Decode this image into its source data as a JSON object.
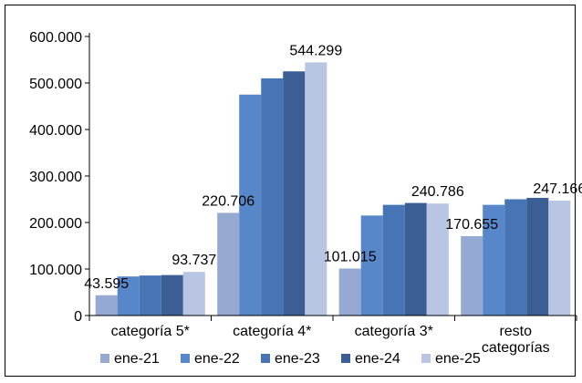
{
  "chart_data": {
    "type": "bar",
    "categories": [
      "categoría 5*",
      "categoría 4*",
      "categoría 3*",
      "resto categorías"
    ],
    "series": [
      {
        "name": "ene-21",
        "color": "#95a9d2",
        "values": [
          43595,
          220706,
          101015,
          170655
        ]
      },
      {
        "name": "ene-22",
        "color": "#5786c9",
        "values": [
          84000,
          475000,
          215000,
          238000
        ]
      },
      {
        "name": "ene-23",
        "color": "#4774b5",
        "values": [
          86000,
          510000,
          238000,
          250000
        ]
      },
      {
        "name": "ene-24",
        "color": "#3b5f95",
        "values": [
          87000,
          525000,
          242000,
          253000
        ]
      },
      {
        "name": "ene-25",
        "color": "#b9c6e3",
        "values": [
          93737,
          544299,
          240786,
          247166
        ]
      }
    ],
    "data_labels": [
      {
        "category": 0,
        "series": 0,
        "text": "43.595"
      },
      {
        "category": 0,
        "series": 4,
        "text": "93.737"
      },
      {
        "category": 1,
        "series": 0,
        "text": "220.706"
      },
      {
        "category": 1,
        "series": 4,
        "text": "544.299"
      },
      {
        "category": 2,
        "series": 0,
        "text": "101.015"
      },
      {
        "category": 2,
        "series": 4,
        "text": "240.786"
      },
      {
        "category": 3,
        "series": 0,
        "text": "170.655"
      },
      {
        "category": 3,
        "series": 4,
        "text": "247.166"
      }
    ],
    "yticks": [
      {
        "value": 0,
        "label": "0"
      },
      {
        "value": 100000,
        "label": "100.000"
      },
      {
        "value": 200000,
        "label": "200.000"
      },
      {
        "value": 300000,
        "label": "300.000"
      },
      {
        "value": 400000,
        "label": "400.000"
      },
      {
        "value": 500000,
        "label": "500.000"
      },
      {
        "value": 600000,
        "label": "600.000"
      }
    ],
    "ylim": [
      0,
      600000
    ],
    "grid": false,
    "legend": "bottom",
    "title": "",
    "xlabel": "",
    "ylabel": ""
  }
}
